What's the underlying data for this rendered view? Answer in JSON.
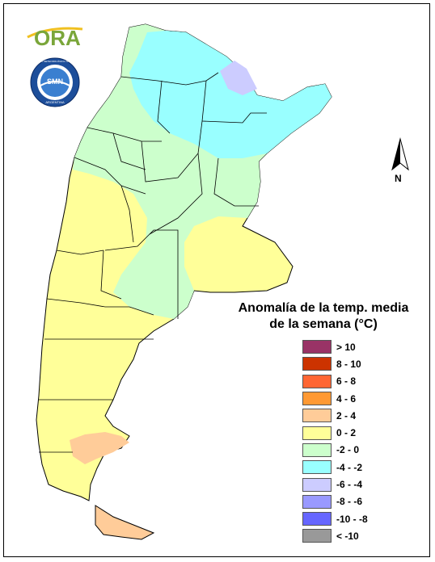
{
  "logo": {
    "text": "ORA"
  },
  "seal": {
    "ring_text": "SERVICIO METEOROLÓGICO NACIONAL",
    "center_text": "SMN",
    "country": "ARGENTINA"
  },
  "north_arrow": {
    "label": "N"
  },
  "legend": {
    "title_line1": "Anomalía de la temp. media",
    "title_line2": "de la semana (°C)",
    "classes": [
      {
        "label": "> 10",
        "color": "#993366"
      },
      {
        "label": "8 - 10",
        "color": "#cc3300"
      },
      {
        "label": "6 - 8",
        "color": "#ff6633"
      },
      {
        "label": "4 - 6",
        "color": "#ff9933"
      },
      {
        "label": "2 - 4",
        "color": "#ffcc99"
      },
      {
        "label": "0 - 2",
        "color": "#ffff99"
      },
      {
        "label": "-2 - 0",
        "color": "#ccffcc"
      },
      {
        "label": "-4 - -2",
        "color": "#99ffff"
      },
      {
        "label": "-6 - -4",
        "color": "#ccccff"
      },
      {
        "label": "-8 - -6",
        "color": "#9999ff"
      },
      {
        "label": "-10 - -8",
        "color": "#6666ff"
      },
      {
        "label": "< -10",
        "color": "#999999"
      }
    ]
  }
}
